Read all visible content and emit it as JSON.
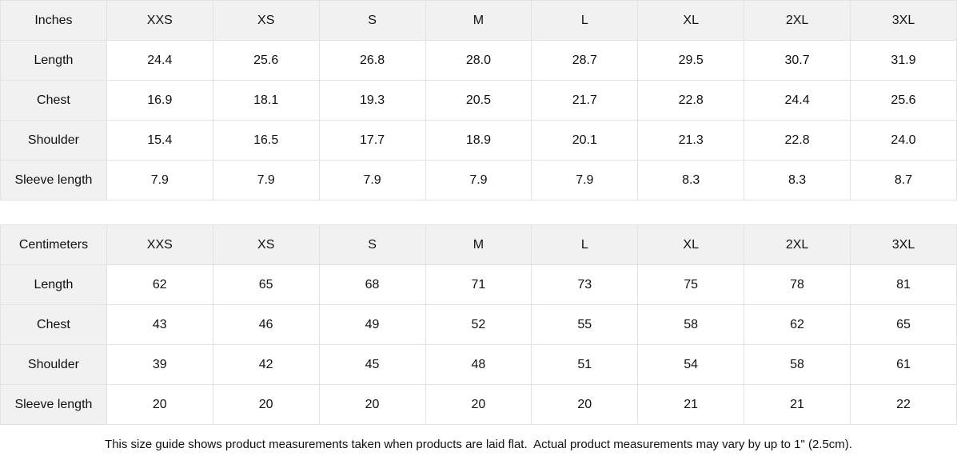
{
  "sizes": [
    "XXS",
    "XS",
    "S",
    "M",
    "L",
    "XL",
    "2XL",
    "3XL"
  ],
  "tables": [
    {
      "unit_label": "Inches",
      "rows": [
        {
          "label": "Length",
          "values": [
            "24.4",
            "25.6",
            "26.8",
            "28.0",
            "28.7",
            "29.5",
            "30.7",
            "31.9"
          ]
        },
        {
          "label": "Chest",
          "values": [
            "16.9",
            "18.1",
            "19.3",
            "20.5",
            "21.7",
            "22.8",
            "24.4",
            "25.6"
          ]
        },
        {
          "label": "Shoulder",
          "values": [
            "15.4",
            "16.5",
            "17.7",
            "18.9",
            "20.1",
            "21.3",
            "22.8",
            "24.0"
          ]
        },
        {
          "label": "Sleeve length",
          "values": [
            "7.9",
            "7.9",
            "7.9",
            "7.9",
            "7.9",
            "8.3",
            "8.3",
            "8.7"
          ]
        }
      ]
    },
    {
      "unit_label": "Centimeters",
      "rows": [
        {
          "label": "Length",
          "values": [
            "62",
            "65",
            "68",
            "71",
            "73",
            "75",
            "78",
            "81"
          ]
        },
        {
          "label": "Chest",
          "values": [
            "43",
            "46",
            "49",
            "52",
            "55",
            "58",
            "62",
            "65"
          ]
        },
        {
          "label": "Shoulder",
          "values": [
            "39",
            "42",
            "45",
            "48",
            "51",
            "54",
            "58",
            "61"
          ]
        },
        {
          "label": "Sleeve length",
          "values": [
            "20",
            "20",
            "20",
            "20",
            "20",
            "21",
            "21",
            "22"
          ]
        }
      ]
    }
  ],
  "footer": {
    "note": "This size guide shows product measurements taken when products are laid flat.  Actual product measurements may vary by up to 1\" (2.5cm)."
  },
  "colors": {
    "header_bg": "#f1f1f1",
    "border": "#e2e2e2",
    "text": "#111111",
    "cell_bg": "#ffffff"
  }
}
